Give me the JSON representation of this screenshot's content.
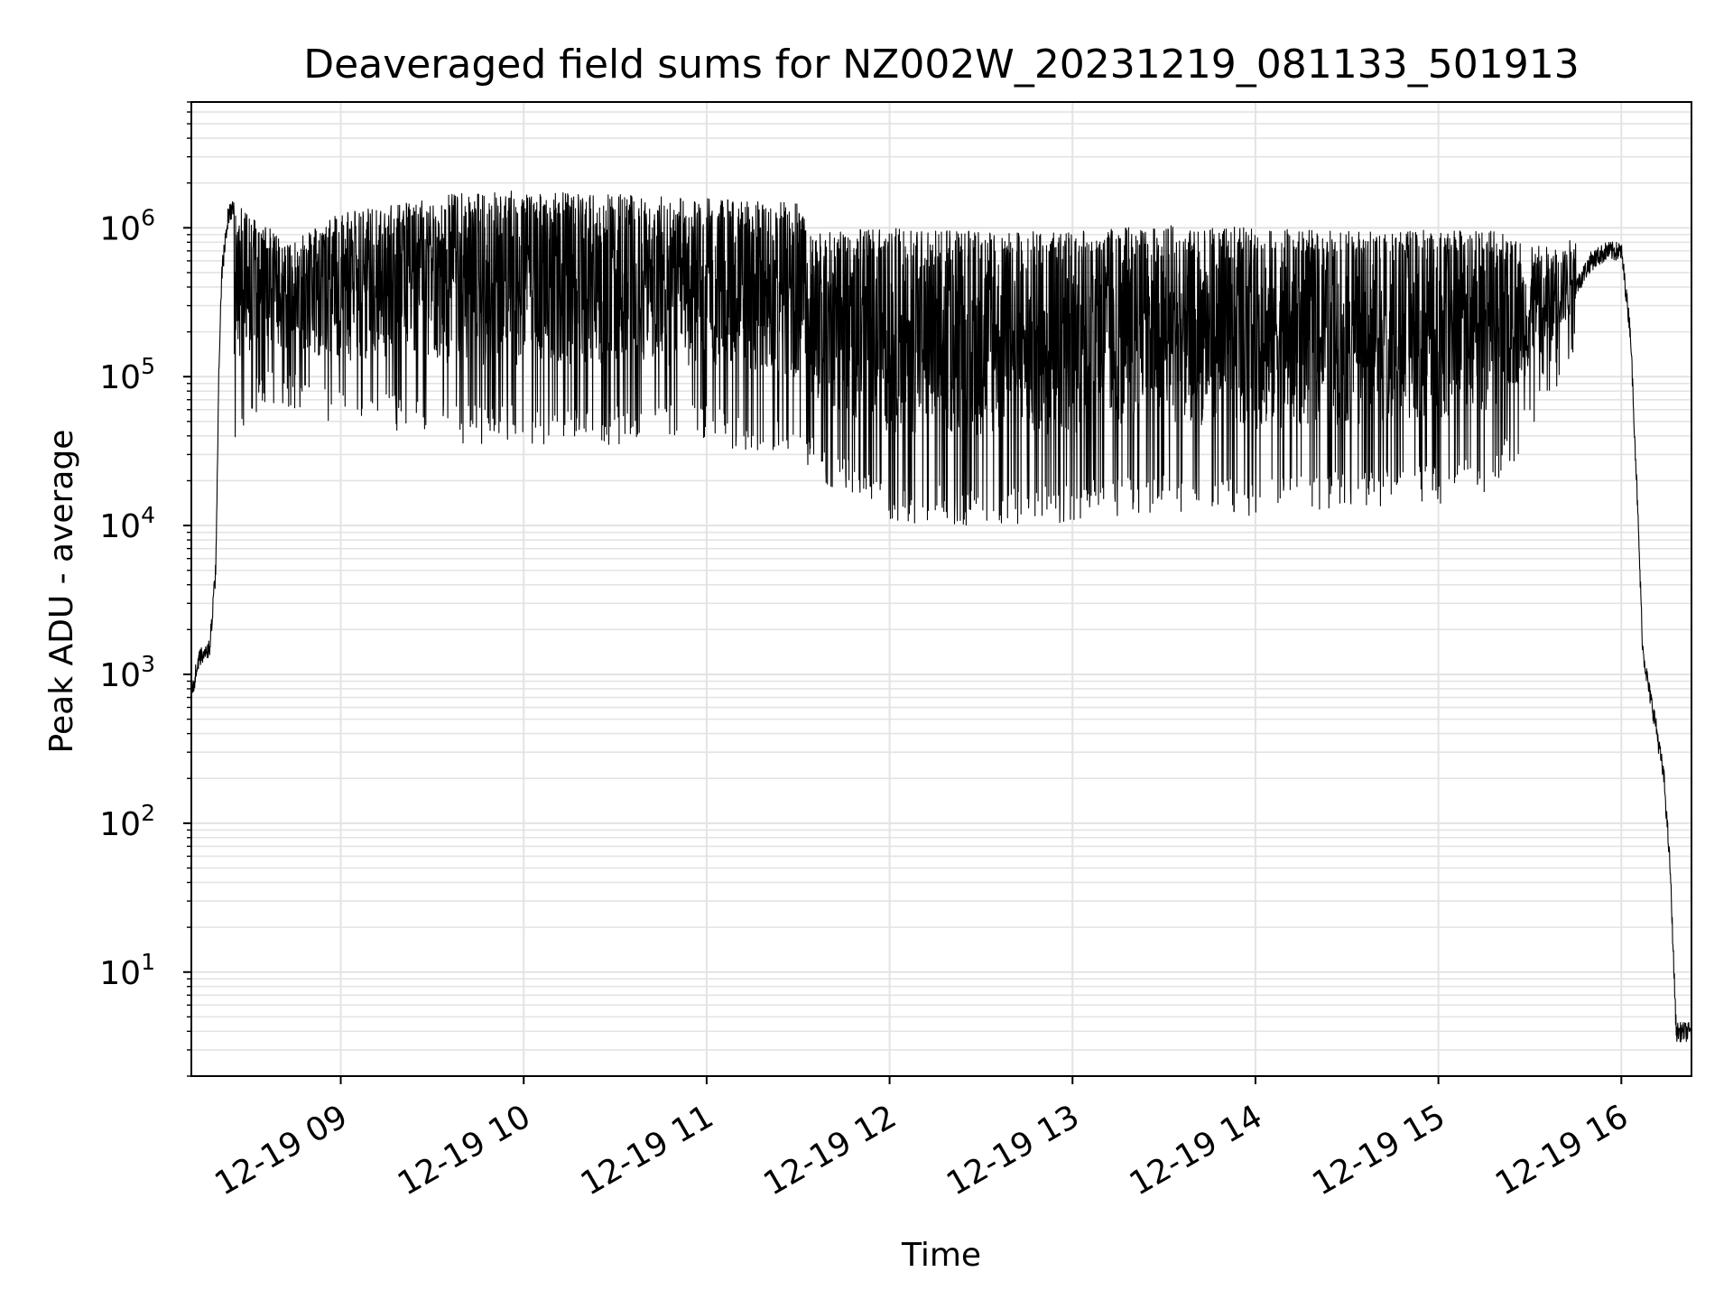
{
  "chart_data": {
    "type": "line",
    "title": "Deaveraged field sums for NZ002W_20231219_081133_501913",
    "xlabel": "Time",
    "ylabel": "Peak ADU - average",
    "yscale": "log",
    "grid": true,
    "line_color": "#000000",
    "grid_color": "#e3e3e3",
    "xlim": [
      "2023-12-19T08:11",
      "2023-12-19T16:23"
    ],
    "ylim": [
      2,
      7000000
    ],
    "x_ticks": [
      {
        "value": "2023-12-19T09:00",
        "label": "12-19 09"
      },
      {
        "value": "2023-12-19T10:00",
        "label": "12-19 10"
      },
      {
        "value": "2023-12-19T11:00",
        "label": "12-19 11"
      },
      {
        "value": "2023-12-19T12:00",
        "label": "12-19 12"
      },
      {
        "value": "2023-12-19T13:00",
        "label": "12-19 13"
      },
      {
        "value": "2023-12-19T14:00",
        "label": "12-19 14"
      },
      {
        "value": "2023-12-19T15:00",
        "label": "12-19 15"
      },
      {
        "value": "2023-12-19T16:00",
        "label": "12-19 16"
      }
    ],
    "y_ticks": [
      {
        "value": 10,
        "base": "10",
        "exp": "1"
      },
      {
        "value": 100,
        "base": "10",
        "exp": "2"
      },
      {
        "value": 1000,
        "base": "10",
        "exp": "3"
      },
      {
        "value": 10000,
        "base": "10",
        "exp": "4"
      },
      {
        "value": 100000,
        "base": "10",
        "exp": "5"
      },
      {
        "value": 1000000,
        "base": "10",
        "exp": "6"
      }
    ],
    "series": [
      {
        "x": [
          "2023-12-19T08:11",
          "2023-12-19T08:13",
          "2023-12-19T08:15",
          "2023-12-19T08:17",
          "2023-12-19T08:19",
          "2023-12-19T08:20",
          "2023-12-19T08:21",
          "2023-12-19T08:23",
          "2023-12-19T08:25",
          "2023-12-19T08:27",
          "2023-12-19T08:28",
          "2023-12-19T08:30",
          "2023-12-19T08:32",
          "2023-12-19T08:35",
          "2023-12-19T08:37",
          "2023-12-19T08:38",
          "2023-12-19T08:40",
          "2023-12-19T08:45",
          "2023-12-19T08:50",
          "2023-12-19T08:55",
          "2023-12-19T09:00",
          "2023-12-19T09:10",
          "2023-12-19T09:20",
          "2023-12-19T09:30",
          "2023-12-19T09:35",
          "2023-12-19T09:45",
          "2023-12-19T10:00",
          "2023-12-19T10:15",
          "2023-12-19T10:30",
          "2023-12-19T10:45",
          "2023-12-19T11:00",
          "2023-12-19T11:15",
          "2023-12-19T11:30",
          "2023-12-19T11:35",
          "2023-12-19T11:45",
          "2023-12-19T12:00",
          "2023-12-19T12:30",
          "2023-12-19T13:00",
          "2023-12-19T13:30",
          "2023-12-19T14:00",
          "2023-12-19T14:30",
          "2023-12-19T15:00",
          "2023-12-19T15:20",
          "2023-12-19T15:25",
          "2023-12-19T15:35",
          "2023-12-19T15:45",
          "2023-12-19T15:50",
          "2023-12-19T15:55",
          "2023-12-19T16:00",
          "2023-12-19T16:03",
          "2023-12-19T16:05",
          "2023-12-19T16:07",
          "2023-12-19T16:09",
          "2023-12-19T16:11",
          "2023-12-19T16:14",
          "2023-12-19T16:16",
          "2023-12-19T16:18",
          "2023-12-19T16:20",
          "2023-12-19T16:22",
          "2023-12-19T16:23"
        ],
        "y": [
          700,
          1200,
          1400,
          1500,
          5000,
          100000,
          500000,
          1200000,
          1400000,
          1000000,
          1100000,
          1000000,
          500000,
          200000,
          300000,
          250000,
          200000,
          150000,
          100000,
          80000,
          100000,
          120000,
          110000,
          90000,
          1200000,
          1300000,
          1400000,
          1300000,
          1200000,
          1100000,
          1100000,
          1000000,
          900000,
          400000,
          300000,
          200000,
          180000,
          200000,
          210000,
          190000,
          170000,
          150000,
          120000,
          80000,
          200000,
          400000,
          600000,
          700000,
          700000,
          200000,
          20000,
          1500,
          800,
          500,
          200,
          50,
          4,
          4,
          4,
          4
        ],
        "envelope_x": [
          "2023-12-19T08:25",
          "2023-12-19T08:35",
          "2023-12-19T08:45",
          "2023-12-19T09:00",
          "2023-12-19T09:30",
          "2023-12-19T09:35",
          "2023-12-19T10:00",
          "2023-12-19T10:30",
          "2023-12-19T11:00",
          "2023-12-19T11:30",
          "2023-12-19T11:35",
          "2023-12-19T12:00",
          "2023-12-19T12:30",
          "2023-12-19T13:00",
          "2023-12-19T13:30",
          "2023-12-19T14:00",
          "2023-12-19T14:30",
          "2023-12-19T15:00",
          "2023-12-19T15:20",
          "2023-12-19T15:30",
          "2023-12-19T15:45"
        ],
        "envelope_hi": [
          1400000,
          1000000,
          800000,
          1200000,
          1500000,
          1600000,
          1700000,
          1600000,
          1500000,
          1400000,
          900000,
          950000,
          900000,
          900000,
          1000000,
          950000,
          900000,
          950000,
          900000,
          700000,
          800000
        ],
        "envelope_lo": [
          50000,
          90000,
          80000,
          60000,
          60000,
          50000,
          50000,
          50000,
          50000,
          40000,
          30000,
          15000,
          14000,
          15000,
          18000,
          16000,
          18000,
          20000,
          25000,
          60000,
          200000
        ]
      }
    ]
  }
}
